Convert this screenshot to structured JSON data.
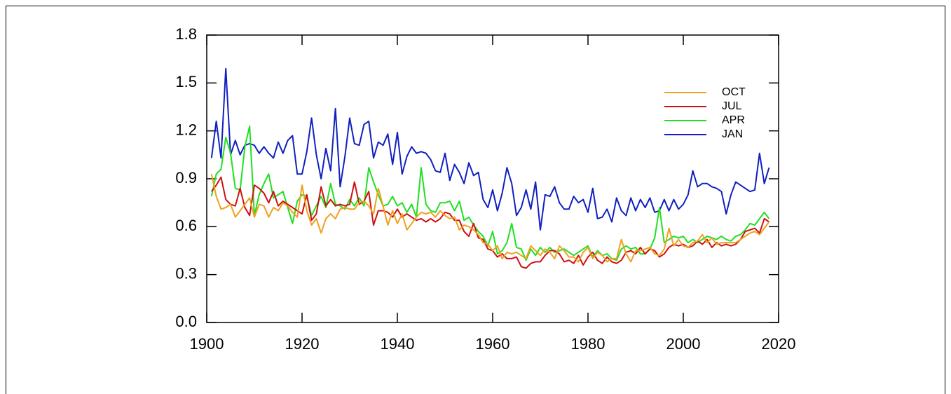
{
  "chart_data": {
    "type": "line",
    "x": [
      1901,
      1902,
      1903,
      1904,
      1905,
      1906,
      1907,
      1908,
      1909,
      1910,
      1911,
      1912,
      1913,
      1914,
      1915,
      1916,
      1917,
      1918,
      1919,
      1920,
      1921,
      1922,
      1923,
      1924,
      1925,
      1926,
      1927,
      1928,
      1929,
      1930,
      1931,
      1932,
      1933,
      1934,
      1935,
      1936,
      1937,
      1938,
      1939,
      1940,
      1941,
      1942,
      1943,
      1944,
      1945,
      1946,
      1947,
      1948,
      1949,
      1950,
      1951,
      1952,
      1953,
      1954,
      1955,
      1956,
      1957,
      1958,
      1959,
      1960,
      1961,
      1962,
      1963,
      1964,
      1965,
      1966,
      1967,
      1968,
      1969,
      1970,
      1971,
      1972,
      1973,
      1974,
      1975,
      1976,
      1977,
      1978,
      1979,
      1980,
      1981,
      1982,
      1983,
      1984,
      1985,
      1986,
      1987,
      1988,
      1989,
      1990,
      1991,
      1992,
      1993,
      1994,
      1995,
      1996,
      1997,
      1998,
      1999,
      2000,
      2001,
      2002,
      2003,
      2004,
      2005,
      2006,
      2007,
      2008,
      2009,
      2010,
      2011,
      2012,
      2013,
      2014,
      2015,
      2016,
      2017,
      2018
    ],
    "series": [
      {
        "name": "OCT",
        "color": "#f0a020",
        "values": [
          0.93,
          0.79,
          0.71,
          0.72,
          0.74,
          0.66,
          0.7,
          0.74,
          0.78,
          0.66,
          0.74,
          0.73,
          0.66,
          0.72,
          0.7,
          0.75,
          0.73,
          0.69,
          0.66,
          0.86,
          0.7,
          0.61,
          0.65,
          0.56,
          0.65,
          0.68,
          0.65,
          0.71,
          0.72,
          0.71,
          0.71,
          0.75,
          0.76,
          0.73,
          0.68,
          0.84,
          0.73,
          0.61,
          0.7,
          0.62,
          0.68,
          0.58,
          0.62,
          0.66,
          0.69,
          0.68,
          0.69,
          0.66,
          0.7,
          0.67,
          0.65,
          0.66,
          0.58,
          0.61,
          0.6,
          0.58,
          0.55,
          0.5,
          0.49,
          0.45,
          0.48,
          0.4,
          0.44,
          0.43,
          0.44,
          0.42,
          0.4,
          0.48,
          0.45,
          0.42,
          0.46,
          0.44,
          0.4,
          0.48,
          0.45,
          0.41,
          0.41,
          0.38,
          0.44,
          0.47,
          0.4,
          0.44,
          0.42,
          0.38,
          0.4,
          0.4,
          0.52,
          0.43,
          0.38,
          0.45,
          0.45,
          0.46,
          0.47,
          0.43,
          0.42,
          0.46,
          0.59,
          0.48,
          0.52,
          0.48,
          0.47,
          0.5,
          0.51,
          0.55,
          0.5,
          0.53,
          0.49,
          0.5,
          0.5,
          0.5,
          0.5,
          0.52,
          0.54,
          0.56,
          0.57,
          0.55,
          0.59,
          0.63
        ]
      },
      {
        "name": "JUL",
        "color": "#d01010",
        "values": [
          0.82,
          0.86,
          0.91,
          0.77,
          0.74,
          0.73,
          0.84,
          0.72,
          0.67,
          0.86,
          0.84,
          0.81,
          0.75,
          0.82,
          0.73,
          0.76,
          0.74,
          0.72,
          0.7,
          0.68,
          0.8,
          0.64,
          0.68,
          0.85,
          0.73,
          0.77,
          0.73,
          0.74,
          0.73,
          0.74,
          0.88,
          0.74,
          0.76,
          0.82,
          0.61,
          0.7,
          0.7,
          0.69,
          0.66,
          0.71,
          0.66,
          0.68,
          0.66,
          0.64,
          0.65,
          0.63,
          0.65,
          0.63,
          0.65,
          0.69,
          0.68,
          0.64,
          0.64,
          0.57,
          0.54,
          0.62,
          0.53,
          0.52,
          0.46,
          0.45,
          0.41,
          0.43,
          0.4,
          0.4,
          0.41,
          0.35,
          0.34,
          0.37,
          0.38,
          0.38,
          0.42,
          0.45,
          0.45,
          0.43,
          0.38,
          0.39,
          0.37,
          0.42,
          0.36,
          0.41,
          0.44,
          0.39,
          0.37,
          0.41,
          0.38,
          0.37,
          0.39,
          0.44,
          0.45,
          0.43,
          0.47,
          0.43,
          0.46,
          0.45,
          0.41,
          0.43,
          0.47,
          0.49,
          0.48,
          0.49,
          0.47,
          0.48,
          0.51,
          0.49,
          0.52,
          0.47,
          0.5,
          0.48,
          0.49,
          0.48,
          0.49,
          0.52,
          0.57,
          0.58,
          0.59,
          0.56,
          0.65,
          0.63
        ]
      },
      {
        "name": "APR",
        "color": "#20e020",
        "values": [
          0.79,
          0.93,
          0.96,
          1.16,
          1.06,
          0.84,
          0.83,
          1.1,
          1.23,
          0.67,
          0.8,
          0.87,
          0.93,
          0.78,
          0.8,
          0.82,
          0.72,
          0.62,
          0.76,
          0.8,
          0.79,
          0.67,
          0.73,
          0.79,
          0.72,
          0.87,
          0.74,
          0.73,
          0.71,
          0.77,
          0.73,
          0.78,
          0.73,
          0.97,
          0.88,
          0.8,
          0.73,
          0.74,
          0.79,
          0.73,
          0.75,
          0.69,
          0.74,
          0.66,
          0.97,
          0.74,
          0.7,
          0.69,
          0.75,
          0.75,
          0.76,
          0.7,
          0.76,
          0.64,
          0.66,
          0.61,
          0.57,
          0.54,
          0.48,
          0.57,
          0.43,
          0.45,
          0.5,
          0.62,
          0.47,
          0.46,
          0.39,
          0.46,
          0.42,
          0.47,
          0.44,
          0.47,
          0.44,
          0.45,
          0.46,
          0.44,
          0.42,
          0.44,
          0.46,
          0.48,
          0.41,
          0.45,
          0.42,
          0.43,
          0.4,
          0.39,
          0.46,
          0.48,
          0.46,
          0.47,
          0.43,
          0.43,
          0.46,
          0.53,
          0.72,
          0.5,
          0.52,
          0.54,
          0.53,
          0.54,
          0.5,
          0.52,
          0.5,
          0.52,
          0.54,
          0.53,
          0.52,
          0.54,
          0.52,
          0.51,
          0.54,
          0.55,
          0.58,
          0.62,
          0.61,
          0.65,
          0.69,
          0.65
        ]
      },
      {
        "name": "JAN",
        "color": "#1020c0",
        "values": [
          1.03,
          1.26,
          1.03,
          1.59,
          1.05,
          1.14,
          1.05,
          1.11,
          1.12,
          1.11,
          1.06,
          1.1,
          1.06,
          1.03,
          1.13,
          1.06,
          1.14,
          1.17,
          0.93,
          0.93,
          1.07,
          1.28,
          1.05,
          0.9,
          1.09,
          0.95,
          1.34,
          0.85,
          1.04,
          1.28,
          1.12,
          1.11,
          1.24,
          1.26,
          1.03,
          1.13,
          1.11,
          1.18,
          0.99,
          1.19,
          0.93,
          1.04,
          1.1,
          1.06,
          1.07,
          1.06,
          1.02,
          0.95,
          0.94,
          1.06,
          0.89,
          0.99,
          0.94,
          0.87,
          1.0,
          0.92,
          0.94,
          0.77,
          0.72,
          0.83,
          0.7,
          0.81,
          0.97,
          0.87,
          0.67,
          0.72,
          0.83,
          0.71,
          0.88,
          0.58,
          0.8,
          0.79,
          0.85,
          0.75,
          0.71,
          0.71,
          0.79,
          0.75,
          0.77,
          0.69,
          0.84,
          0.65,
          0.66,
          0.71,
          0.63,
          0.78,
          0.7,
          0.67,
          0.78,
          0.7,
          0.77,
          0.72,
          0.78,
          0.69,
          0.7,
          0.77,
          0.7,
          0.77,
          0.71,
          0.74,
          0.8,
          0.95,
          0.85,
          0.87,
          0.87,
          0.85,
          0.84,
          0.82,
          0.68,
          0.8,
          0.88,
          0.86,
          0.84,
          0.82,
          0.83,
          1.06,
          0.87,
          0.97
        ]
      }
    ],
    "xlim": [
      1900,
      2020
    ],
    "xticks": [
      1900,
      1920,
      1940,
      1960,
      1980,
      2000,
      2020
    ],
    "ylim": [
      0,
      1.8
    ],
    "yticks": [
      {
        "value": 0,
        "label": "0.0"
      },
      0.3,
      0.6,
      0.9,
      1.2,
      1.5,
      1.8
    ],
    "legend": "upper right"
  }
}
